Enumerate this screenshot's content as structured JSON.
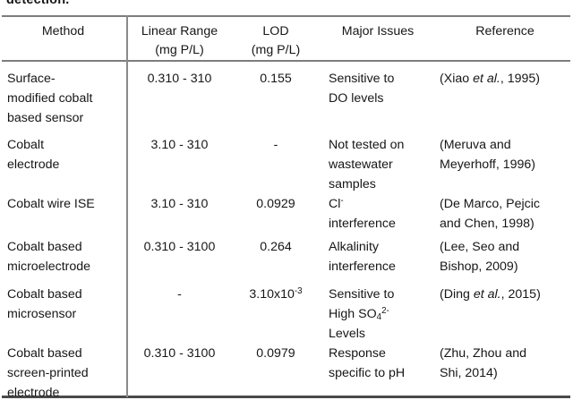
{
  "page": {
    "caption_fragment": "detection."
  },
  "table": {
    "headers": {
      "method": "Method",
      "linear_range": "Linear Range\n(mg P/L)",
      "lod": "LOD\n(mg P/L)",
      "major_issues": "Major Issues",
      "reference": "Reference"
    },
    "rows": [
      {
        "method": "Surface-\nmodified cobalt\nbased sensor",
        "linear_range": "0.310 - 310",
        "lod": "0.155",
        "major_issues": "Sensitive to\nDO levels",
        "reference": "(Xiao *et al.*, 1995)"
      },
      {
        "method": "Cobalt\nelectrode",
        "linear_range": "3.10 - 310",
        "lod": "-",
        "major_issues": "Not tested on\nwastewater\nsamples",
        "reference": "(Meruva and\nMeyerhoff, 1996)"
      },
      {
        "method": "Cobalt wire ISE",
        "linear_range": "3.10 - 310",
        "lod": "0.0929",
        "major_issues": "Cl^{-}\ninterference",
        "reference": "(De Marco, Pejcic\nand Chen, 1998)"
      },
      {
        "method": "Cobalt based\nmicroelectrode",
        "linear_range": "0.310 - 3100",
        "lod": "0.264",
        "major_issues": "Alkalinity\ninterference",
        "reference": "(Lee, Seo and\nBishop, 2009)"
      },
      {
        "method": "Cobalt based\nmicrosensor",
        "linear_range": "-",
        "lod": "3.10x10^{-3}",
        "major_issues": "Sensitive to\nHigh SO_{4}^{2-}\nLevels",
        "reference": "(Ding *et al.*, 2015)"
      },
      {
        "method": "Cobalt based\nscreen-printed\nelectrode",
        "linear_range": "0.310 - 3100",
        "lod": "0.0979",
        "major_issues": "Response\nspecific to pH",
        "reference": "(Zhu, Zhou and\nShi, 2014)"
      }
    ]
  }
}
